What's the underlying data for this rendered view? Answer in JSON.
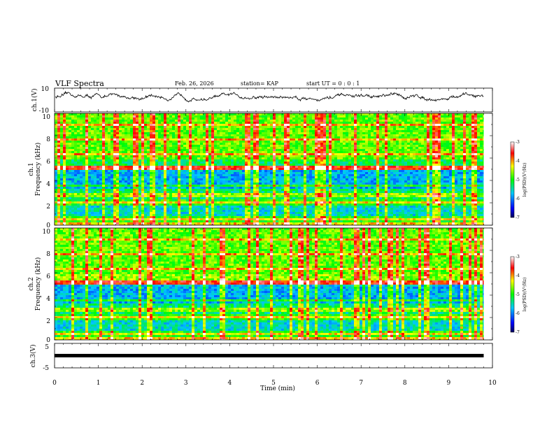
{
  "header": {
    "title": "VLF Spectra",
    "date": "Feb. 26, 2026",
    "station": "station= KAP",
    "start_ut": "start  UT =   0 : 0  : 1"
  },
  "chart_data": [
    {
      "type": "line",
      "panel": "ch1-waveform",
      "ylabel": "ch.1(V)",
      "ylim": [
        -10,
        10
      ],
      "y_tick_labels": [
        "10",
        "-10"
      ],
      "x_range_min": [
        0,
        9.8
      ],
      "series": [
        {
          "name": "ch.1",
          "approx_range": [
            -4,
            8
          ]
        }
      ]
    },
    {
      "type": "heatmap",
      "panel": "ch1-spectrogram",
      "ylabel_top": "ch.1",
      "ylabel": "Frequency (kHz)",
      "ylim": [
        0,
        10
      ],
      "y_tick_labels": [
        "0",
        "2",
        "4",
        "6",
        "8",
        "10"
      ],
      "x_range_min": [
        0,
        9.8
      ],
      "colorbar": {
        "label": "log(PSD)(V²/Hz)",
        "range": [
          -7,
          -3
        ],
        "tick_labels": [
          "-3",
          "-4",
          "-5",
          "-6",
          "-7"
        ]
      }
    },
    {
      "type": "heatmap",
      "panel": "ch2-spectrogram",
      "ylabel_top": "ch.2",
      "ylabel": "Frequency (kHz)",
      "ylim": [
        0,
        10
      ],
      "y_tick_labels": [
        "0",
        "2",
        "4",
        "6",
        "8",
        "10"
      ],
      "x_range_min": [
        0,
        9.8
      ],
      "colorbar": {
        "label": "log(PSD)(V²/Hz)",
        "range": [
          -7,
          -3
        ],
        "tick_labels": [
          "-3",
          "-4",
          "-5",
          "-6",
          "-7"
        ]
      }
    },
    {
      "type": "line",
      "panel": "ch3-waveform",
      "ylabel": "ch.3(V)",
      "ylim": [
        -5,
        5
      ],
      "y_tick_labels": [
        "5",
        "-5"
      ],
      "x_range_min": [
        0,
        9.8
      ],
      "series": [
        {
          "name": "ch.3",
          "approx_value": 0
        }
      ]
    }
  ],
  "xaxis": {
    "label": "Time (min)",
    "range": [
      0,
      10
    ],
    "tick_labels": [
      "0",
      "1",
      "2",
      "3",
      "4",
      "5",
      "6",
      "7",
      "8",
      "9",
      "10"
    ]
  },
  "colors": {
    "background": "#ffffff",
    "trace": "#000000",
    "colormap": [
      "#00005a",
      "#0000ff",
      "#00c8ff",
      "#00ff00",
      "#ffff00",
      "#ff0000",
      "#ffffff"
    ]
  }
}
